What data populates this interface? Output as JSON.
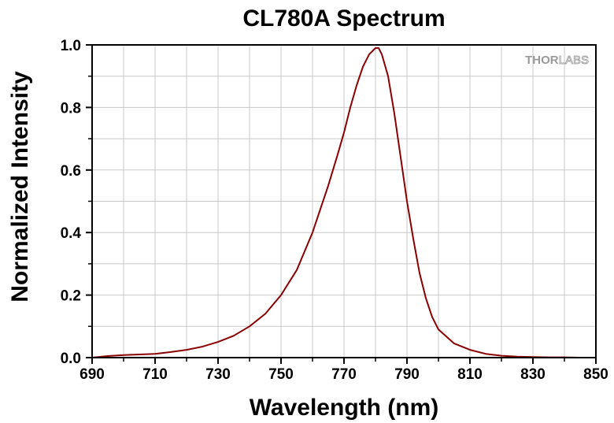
{
  "chart_data": {
    "type": "line",
    "title": "CL780A Spectrum",
    "xlabel": "Wavelength (nm)",
    "ylabel": "Normalized Intensity",
    "xlim": [
      690,
      850
    ],
    "ylim": [
      0,
      1.0
    ],
    "x_ticks": [
      "690",
      "710",
      "730",
      "750",
      "770",
      "790",
      "810",
      "830",
      "850"
    ],
    "y_ticks": [
      "0.0",
      "0.2",
      "0.4",
      "0.6",
      "0.8",
      "1.0"
    ],
    "grid": true,
    "series": [
      {
        "color": "#8b0000",
        "x": [
          690,
          695,
          700,
          705,
          710,
          715,
          720,
          725,
          730,
          735,
          740,
          745,
          750,
          755,
          760,
          765,
          768,
          770,
          772,
          774,
          776,
          778,
          780,
          781,
          782,
          784,
          786,
          788,
          790,
          792,
          794,
          796,
          798,
          800,
          805,
          810,
          815,
          820,
          825,
          830,
          835,
          840,
          845,
          850
        ],
        "y": [
          0.0,
          0.005,
          0.008,
          0.01,
          0.012,
          0.018,
          0.025,
          0.035,
          0.05,
          0.07,
          0.1,
          0.14,
          0.2,
          0.28,
          0.4,
          0.55,
          0.65,
          0.72,
          0.8,
          0.87,
          0.93,
          0.97,
          0.99,
          0.99,
          0.97,
          0.9,
          0.78,
          0.64,
          0.5,
          0.38,
          0.27,
          0.19,
          0.13,
          0.09,
          0.045,
          0.025,
          0.012,
          0.006,
          0.003,
          0.002,
          0.001,
          0.001,
          0.0,
          0.0
        ]
      }
    ]
  },
  "logo": {
    "part1": "THOR",
    "part2": "LABS"
  }
}
